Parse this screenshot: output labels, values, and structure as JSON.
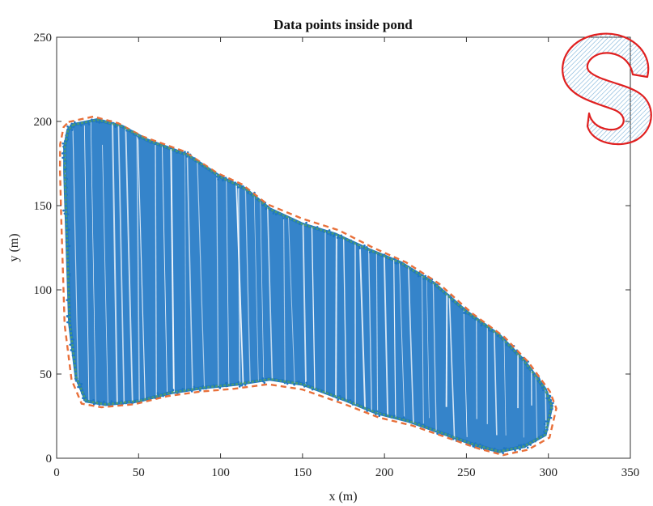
{
  "chart_data": {
    "type": "scatter",
    "title": "Data points inside pond",
    "xlabel": "x (m)",
    "ylabel": "y (m)",
    "xlim": [
      0,
      350
    ],
    "ylim": [
      0,
      250
    ],
    "xticks": [
      "0",
      "50",
      "100",
      "150",
      "200",
      "250",
      "300",
      "350"
    ],
    "yticks": [
      "0",
      "50",
      "100",
      "150",
      "200",
      "250"
    ],
    "grid": false,
    "colors": {
      "points": "#1f77c4",
      "boundary": "#4a9a78",
      "buffer": "#e8703a",
      "logo_stroke": "#e02020"
    },
    "series": [
      {
        "role": "points",
        "region_x": [
          10,
          25,
          40,
          55,
          80,
          100,
          115,
          130,
          150,
          170,
          190,
          210,
          230,
          250,
          270,
          285,
          298,
          302,
          298,
          285,
          270,
          255,
          235,
          215,
          195,
          175,
          150,
          130,
          110,
          90,
          70,
          50,
          30,
          18,
          12,
          8,
          6,
          5,
          5,
          7
        ],
        "region_y": [
          198,
          201,
          197,
          189,
          180,
          167,
          160,
          148,
          139,
          133,
          124,
          116,
          104,
          87,
          73,
          58,
          41,
          31,
          14,
          7,
          4,
          8,
          15,
          22,
          27,
          35,
          44,
          47,
          44,
          42,
          39,
          34,
          32,
          34,
          48,
          80,
          140,
          170,
          185,
          195
        ]
      },
      {
        "role": "boundary",
        "x": [
          10,
          25,
          40,
          55,
          80,
          100,
          115,
          130,
          150,
          170,
          190,
          210,
          230,
          250,
          270,
          285,
          298,
          302,
          298,
          285,
          270,
          255,
          235,
          215,
          195,
          175,
          150,
          130,
          110,
          90,
          70,
          50,
          30,
          18,
          12,
          8,
          6,
          5,
          5,
          7,
          10
        ],
        "y": [
          198,
          201,
          197,
          189,
          180,
          167,
          160,
          148,
          139,
          133,
          124,
          116,
          104,
          87,
          73,
          58,
          41,
          31,
          14,
          7,
          4,
          8,
          15,
          22,
          27,
          35,
          44,
          47,
          44,
          42,
          39,
          34,
          32,
          34,
          48,
          80,
          140,
          170,
          185,
          195,
          198
        ]
      },
      {
        "role": "buffer",
        "x": [
          10,
          25,
          40,
          55,
          80,
          100,
          115,
          130,
          150,
          170,
          190,
          210,
          230,
          250,
          270,
          285,
          298,
          302,
          298,
          285,
          270,
          255,
          235,
          215,
          195,
          175,
          150,
          130,
          110,
          90,
          70,
          50,
          30,
          18,
          12,
          8,
          6,
          5,
          5,
          7,
          10
        ],
        "y": [
          198,
          201,
          197,
          189,
          180,
          167,
          160,
          148,
          139,
          133,
          124,
          116,
          104,
          87,
          73,
          58,
          41,
          31,
          14,
          7,
          4,
          8,
          15,
          22,
          27,
          35,
          44,
          47,
          44,
          42,
          39,
          34,
          32,
          34,
          48,
          80,
          140,
          170,
          185,
          195,
          198
        ]
      }
    ]
  },
  "logo": {
    "letter": "S"
  }
}
